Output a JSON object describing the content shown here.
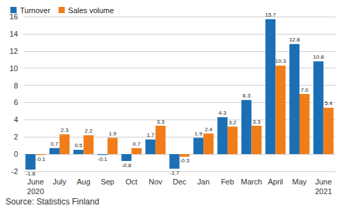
{
  "chart_data": {
    "type": "bar",
    "categories": [
      "June\n2020",
      "July",
      "Aug",
      "Sep",
      "Oct",
      "Nov",
      "Dec",
      "Jan",
      "Feb",
      "March",
      "April",
      "May",
      "June\n2021"
    ],
    "series": [
      {
        "name": "Turnover",
        "color": "#1a6fb5",
        "values": [
          -1.8,
          0.7,
          0.5,
          -0.1,
          -0.8,
          1.7,
          -1.7,
          1.9,
          4.3,
          6.3,
          15.7,
          12.8,
          10.8
        ]
      },
      {
        "name": "Sales volume",
        "color": "#f07d1a",
        "values": [
          -0.1,
          2.3,
          2.2,
          1.9,
          0.7,
          3.3,
          -0.3,
          2.4,
          3.2,
          3.3,
          10.3,
          7.0,
          5.4
        ],
        "value_labels": [
          "-0.1",
          "2.3",
          "2.2",
          "1.9",
          "0.7",
          "3.3",
          "-0.3",
          "2.4",
          "3.2",
          "3.3",
          "10.3",
          "7.0",
          "5.4"
        ]
      }
    ],
    "ylim": [
      -2,
      16
    ],
    "yticks": [
      -2,
      0,
      2,
      4,
      6,
      8,
      10,
      12,
      14,
      16
    ],
    "grid": true,
    "legend": "top-left",
    "data_labels": true,
    "source": "Source: Statistics Finland"
  }
}
